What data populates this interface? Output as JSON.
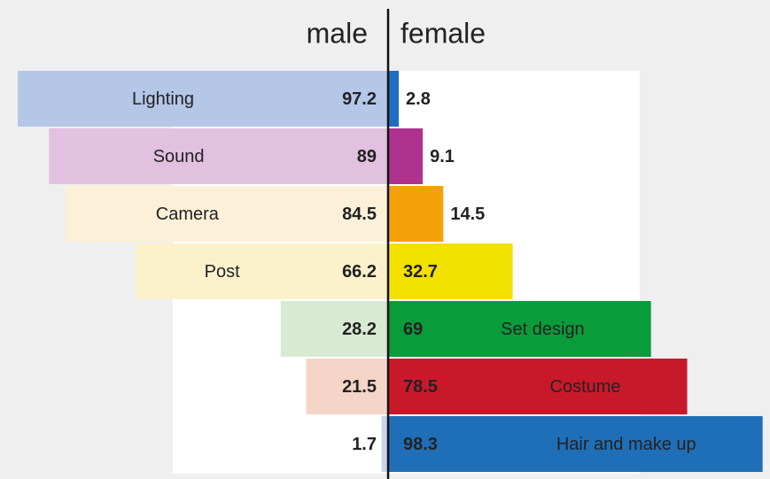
{
  "chart_data": {
    "type": "diverging-bar",
    "categories": [
      "Lighting",
      "Sound",
      "Camera",
      "Post",
      "Set design",
      "Costume",
      "Hair and make up"
    ],
    "xlim": [
      0,
      100
    ],
    "series": [
      {
        "name": "male",
        "values": [
          97.2,
          89,
          84.5,
          66.2,
          28.2,
          21.5,
          1.7
        ],
        "colors": [
          "#b4c7e7",
          "#e2c0df",
          "#fdf0d8",
          "#fbf2cc",
          "#d9ead3",
          "#f5d5c8",
          "#c9d5ec"
        ]
      },
      {
        "name": "female",
        "values": [
          2.8,
          9.1,
          14.5,
          32.7,
          69,
          78.5,
          98.3
        ],
        "colors": [
          "#1f6fc0",
          "#b0328f",
          "#f5a20a",
          "#f3e100",
          "#0a9b3b",
          "#c8192b",
          "#1f6fb8"
        ]
      }
    ]
  }
}
